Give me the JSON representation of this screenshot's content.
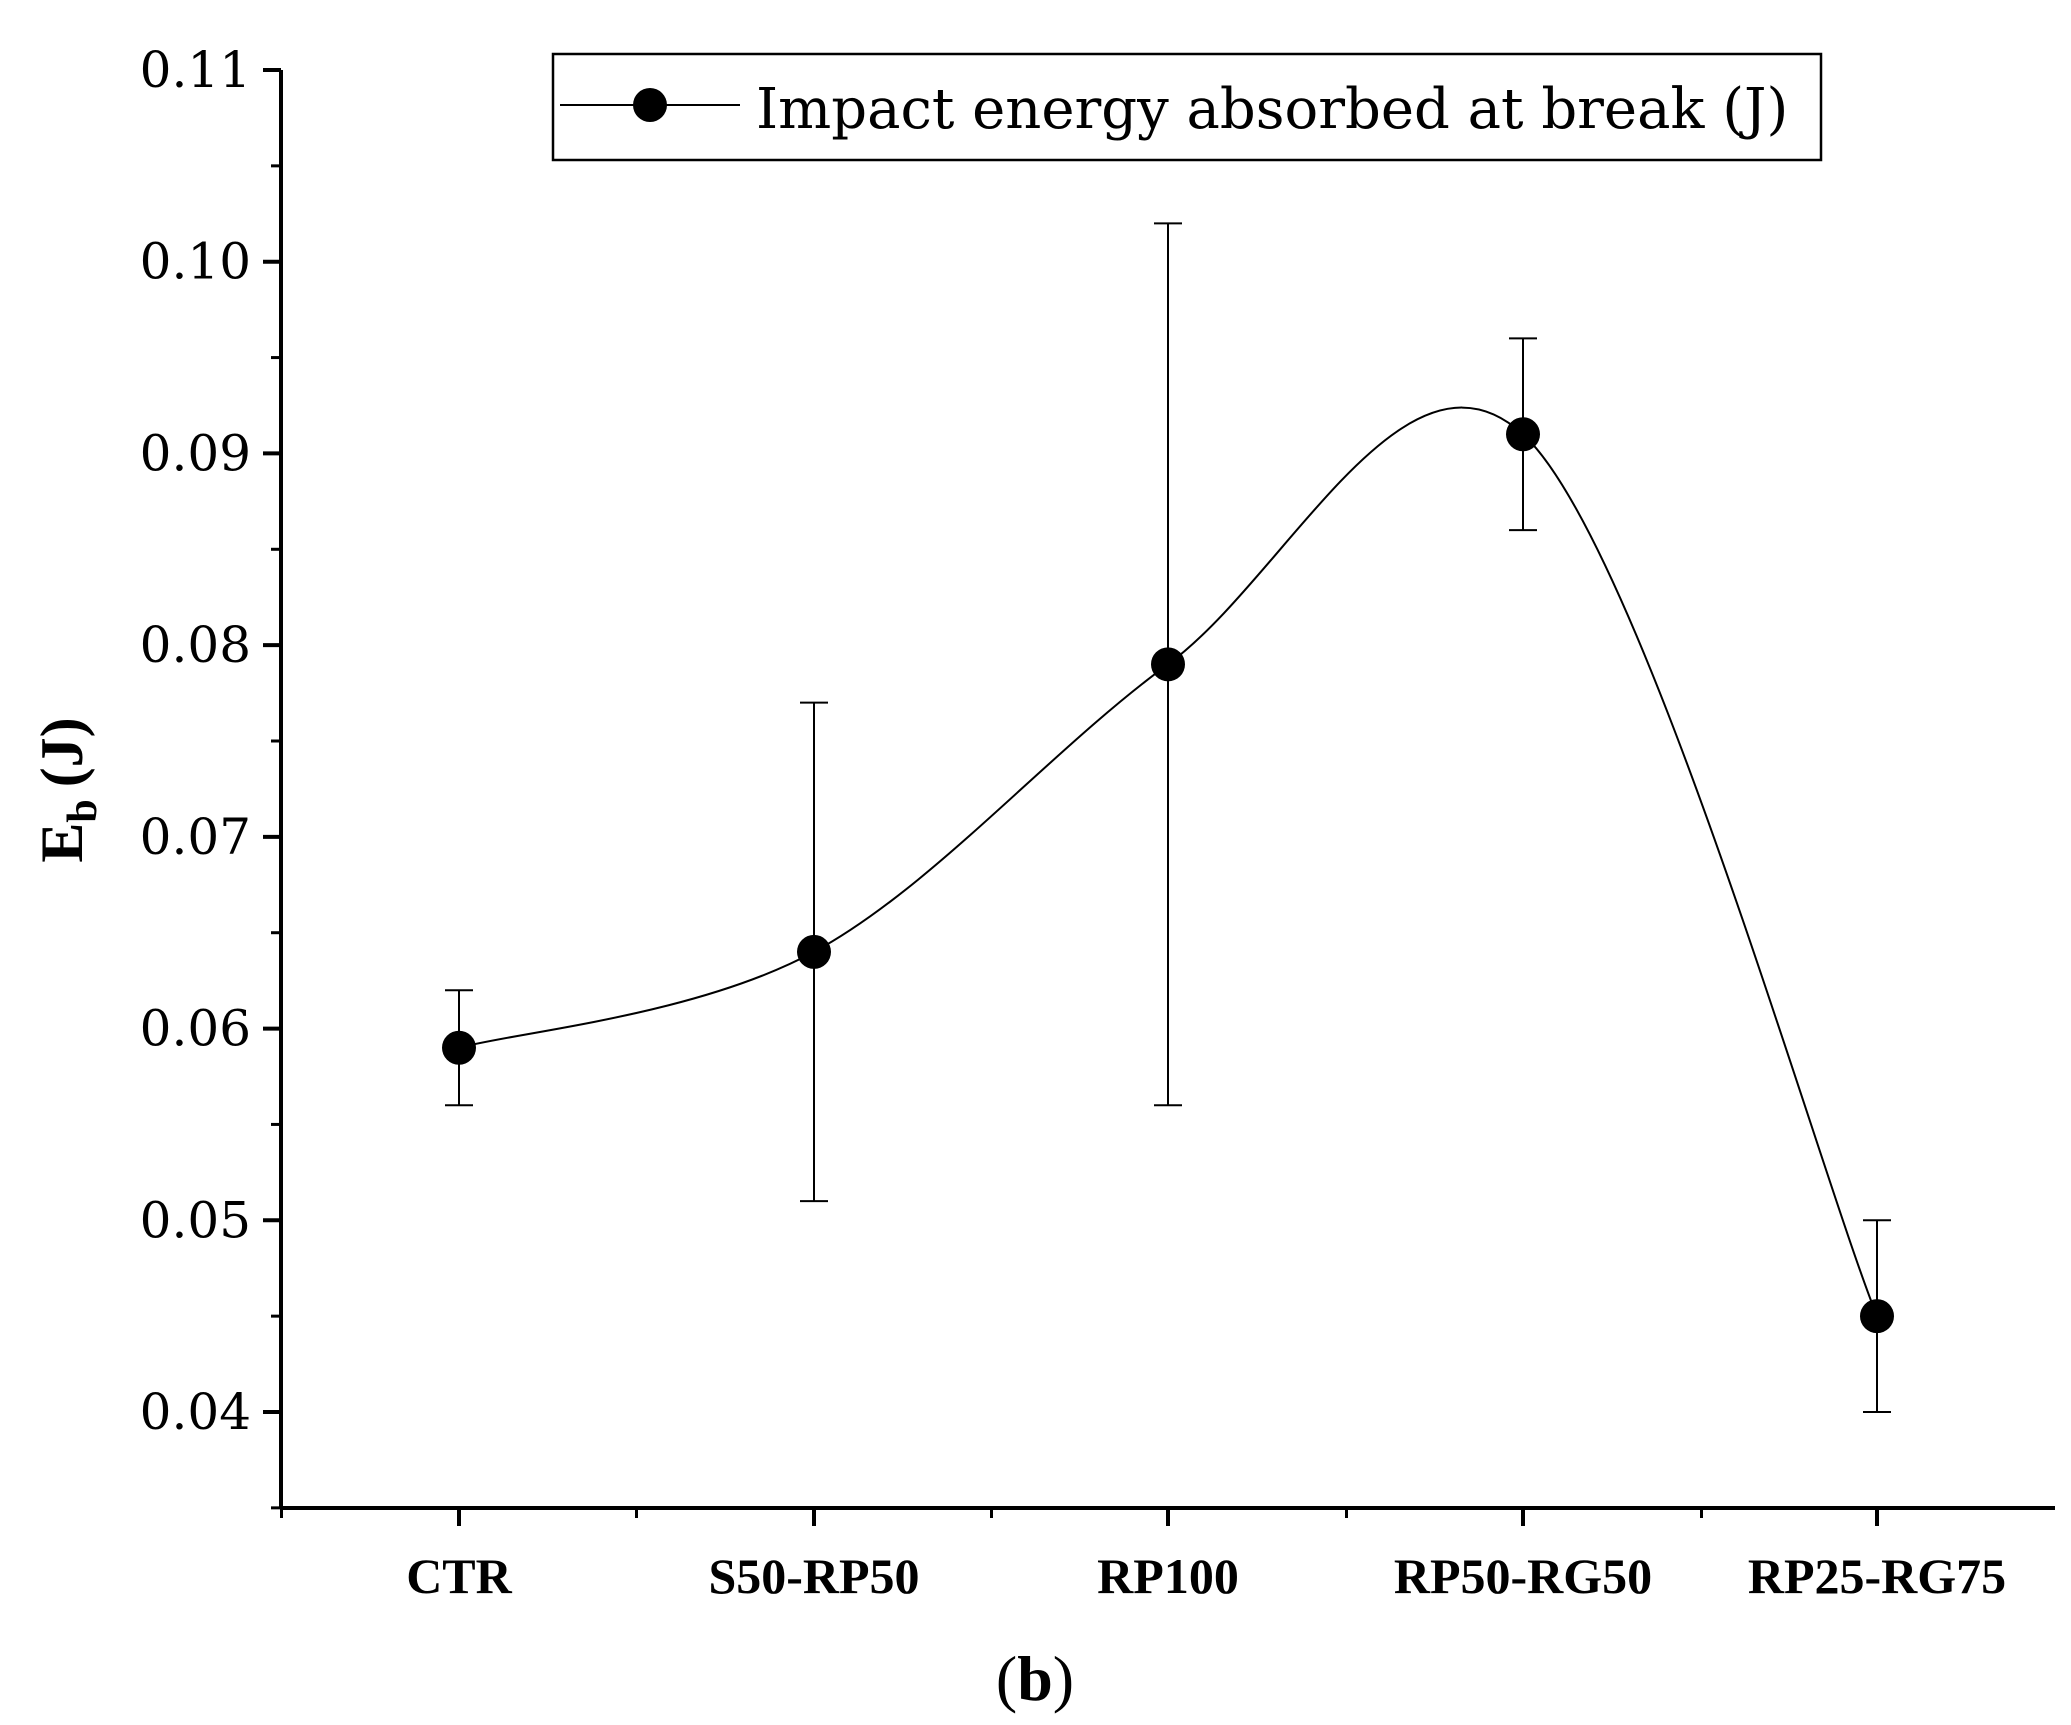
{
  "chart_data": {
    "type": "line",
    "categories": [
      "CTR",
      "S50-RP50",
      "RP100",
      "RP50-RG50",
      "RP25-RG75"
    ],
    "series": [
      {
        "name": "Impact energy absorbed at break (J)",
        "values": [
          0.059,
          0.064,
          0.079,
          0.091,
          0.045
        ],
        "error_low": [
          0.056,
          0.051,
          0.056,
          0.086,
          0.04
        ],
        "error_high": [
          0.062,
          0.077,
          0.102,
          0.096,
          0.05
        ]
      }
    ],
    "ylabel_main": "E",
    "ylabel_sub": "b",
    "ylabel_unit": "(J)",
    "xlabel": "",
    "ylim": [
      0.035,
      0.11
    ],
    "yticks": [
      "0.04",
      "0.05",
      "0.06",
      "0.07",
      "0.08",
      "0.09",
      "0.10",
      "0.11"
    ],
    "legend_position": "top-right",
    "panel_label": {
      "open": "(",
      "letter": "b",
      "close": ")"
    },
    "colors": {
      "line": "#000000",
      "marker": "#000000"
    }
  }
}
